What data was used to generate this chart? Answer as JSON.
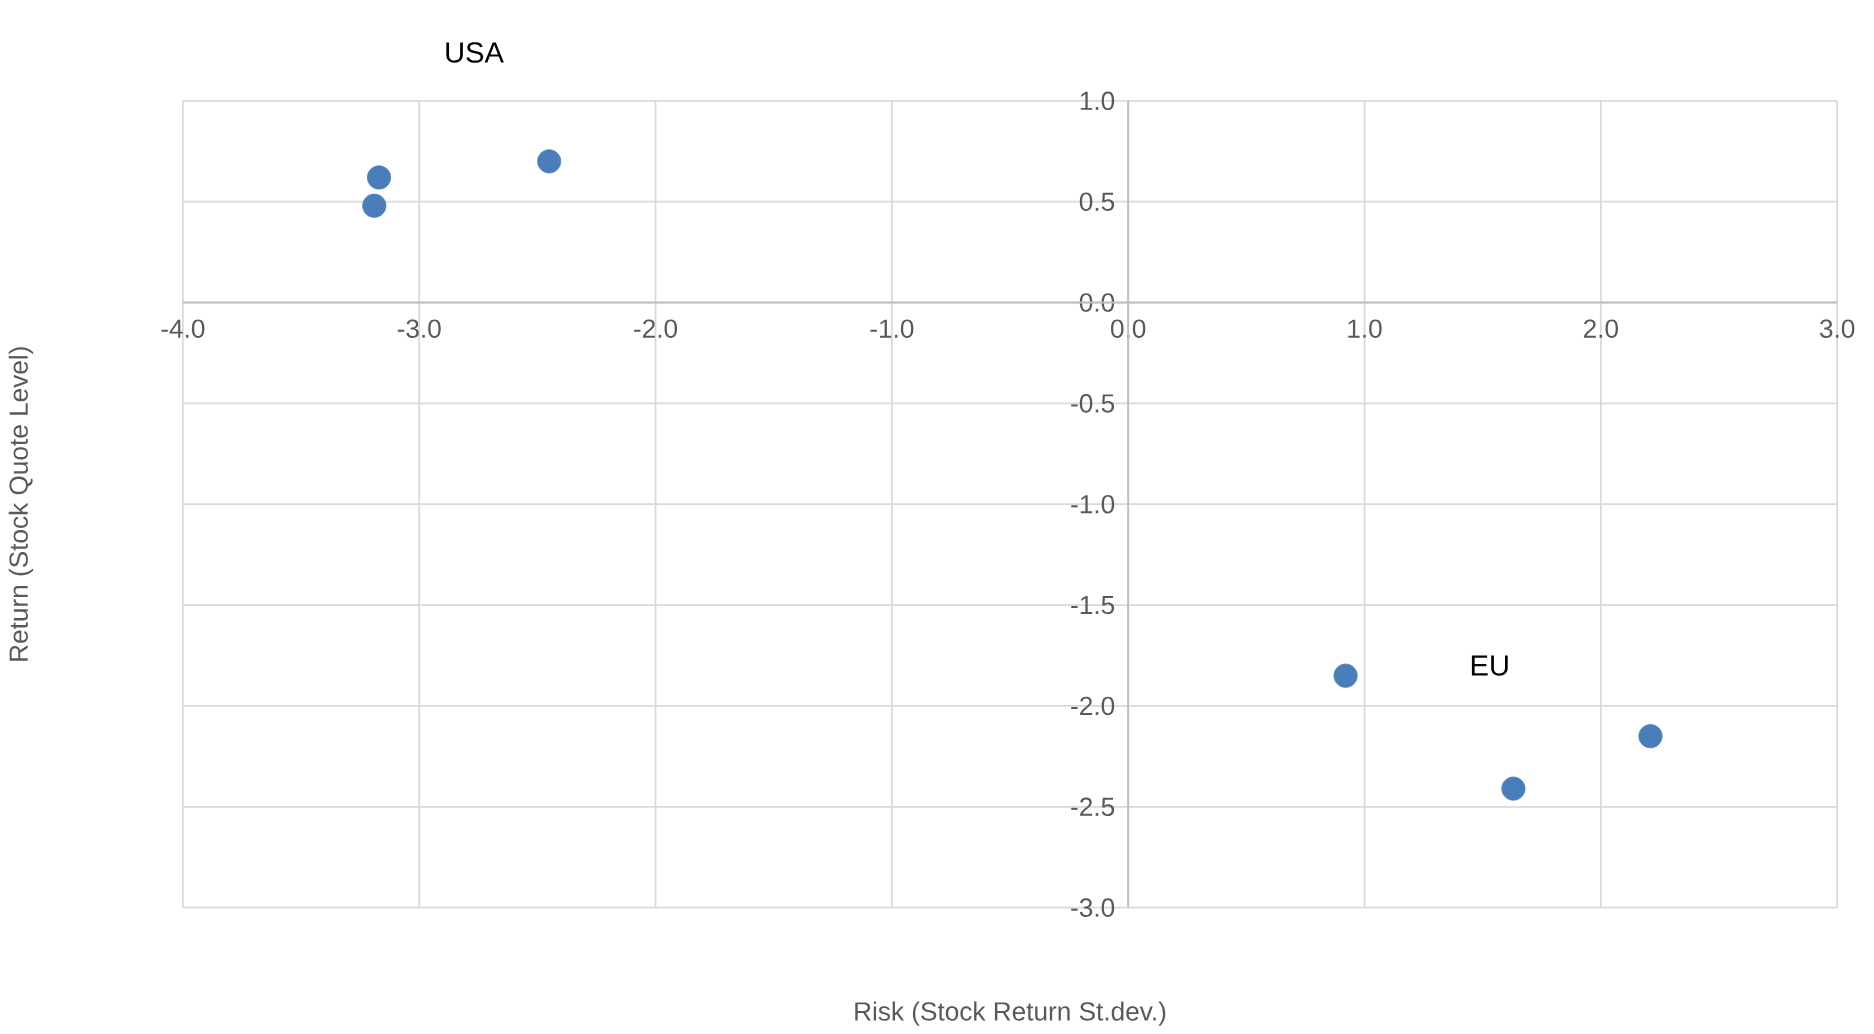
{
  "chart_data": {
    "type": "scatter",
    "xlabel": "Risk (Stock Return St.dev.)",
    "ylabel": "Return (Stock Quote Level)",
    "x": [
      -3.17,
      -3.19,
      -2.45,
      0.92,
      1.63,
      2.21
    ],
    "series": [
      {
        "color": "#4a7ebb",
        "values": [
          0.62,
          0.48,
          0.7,
          -1.85,
          -2.41,
          -2.15
        ]
      }
    ],
    "marker": "circle",
    "grid": true,
    "xlim": [
      -4,
      3
    ],
    "ylim": [
      -3,
      1
    ],
    "xticks": [
      {
        "value": -4,
        "label": "-4.0"
      },
      {
        "value": -3,
        "label": "-3.0"
      },
      {
        "value": -2,
        "label": "-2.0"
      },
      {
        "value": -1,
        "label": "-1.0"
      },
      {
        "value": 0,
        "label": "0.0"
      },
      {
        "value": 1,
        "label": "1.0"
      },
      {
        "value": 2,
        "label": "2.0"
      },
      {
        "value": 3,
        "label": "3.0"
      }
    ],
    "yticks": [
      {
        "value": 1,
        "label": "1.0"
      },
      {
        "value": 0.5,
        "label": "0.5"
      },
      {
        "value": 0,
        "label": "0.0"
      },
      {
        "value": -0.5,
        "label": "-0.5"
      },
      {
        "value": -1,
        "label": "-1.0"
      },
      {
        "value": -1.5,
        "label": "-1.5"
      },
      {
        "value": -2,
        "label": "-2.0"
      },
      {
        "value": -2.5,
        "label": "-2.5"
      },
      {
        "value": -3,
        "label": "-3.0"
      }
    ],
    "annotations": [
      "USA",
      "EU"
    ]
  }
}
